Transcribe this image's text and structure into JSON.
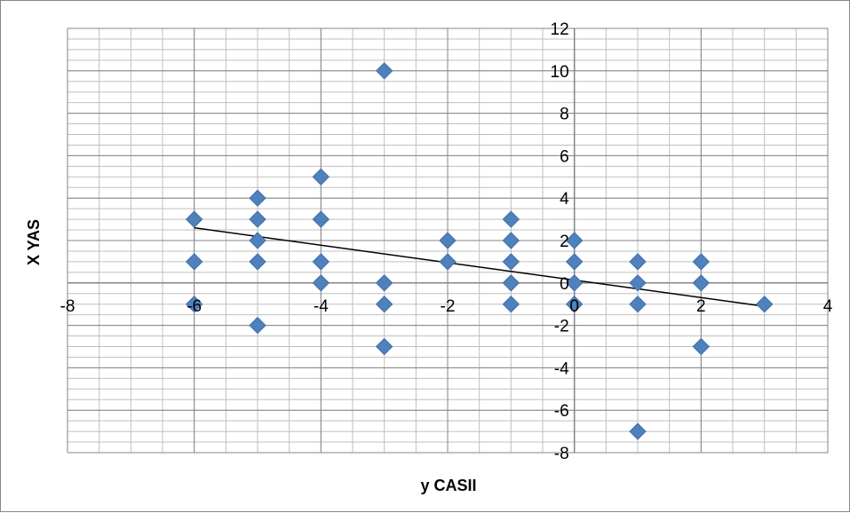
{
  "chart_data": {
    "type": "scatter",
    "title": "",
    "xlabel": "y CASII",
    "ylabel": "X YAS",
    "xlim": [
      -8,
      4
    ],
    "ylim": [
      -8,
      12
    ],
    "x_major_step": 2,
    "y_major_step": 2,
    "x_minor_step": 0.5,
    "y_minor_step": 0.5,
    "grid": true,
    "legend": "none",
    "marker": "diamond",
    "marker_color": "#4F81BD",
    "trendline_color": "#000000",
    "points": [
      {
        "x": -6,
        "y": 3
      },
      {
        "x": -6,
        "y": 1
      },
      {
        "x": -6,
        "y": -1
      },
      {
        "x": -5,
        "y": 4
      },
      {
        "x": -5,
        "y": 3
      },
      {
        "x": -5,
        "y": 2
      },
      {
        "x": -5,
        "y": 1
      },
      {
        "x": -5,
        "y": -2
      },
      {
        "x": -4,
        "y": 5
      },
      {
        "x": -4,
        "y": 3
      },
      {
        "x": -4,
        "y": 1
      },
      {
        "x": -4,
        "y": 0
      },
      {
        "x": -3,
        "y": 10
      },
      {
        "x": -3,
        "y": 0
      },
      {
        "x": -3,
        "y": -1
      },
      {
        "x": -3,
        "y": -3
      },
      {
        "x": -2,
        "y": 2
      },
      {
        "x": -2,
        "y": 1
      },
      {
        "x": -1,
        "y": 3
      },
      {
        "x": -1,
        "y": 2
      },
      {
        "x": -1,
        "y": 1
      },
      {
        "x": -1,
        "y": 0
      },
      {
        "x": -1,
        "y": -1
      },
      {
        "x": 0,
        "y": 2
      },
      {
        "x": 0,
        "y": 1
      },
      {
        "x": 0,
        "y": 0
      },
      {
        "x": 0,
        "y": -1
      },
      {
        "x": 1,
        "y": 1
      },
      {
        "x": 1,
        "y": 0
      },
      {
        "x": 1,
        "y": -1
      },
      {
        "x": 1,
        "y": -7
      },
      {
        "x": 2,
        "y": 1
      },
      {
        "x": 2,
        "y": 0
      },
      {
        "x": 2,
        "y": -3
      },
      {
        "x": 3,
        "y": -1
      }
    ],
    "trendline": {
      "x": [
        -6,
        3
      ],
      "y": [
        2.6,
        -1.1
      ]
    },
    "x_ticks": [
      "-8",
      "-6",
      "-4",
      "-2",
      "0",
      "2",
      "4"
    ],
    "y_ticks": [
      "12",
      "10",
      "8",
      "6",
      "4",
      "2",
      "0",
      "-2",
      "-4",
      "-6",
      "-8"
    ]
  }
}
